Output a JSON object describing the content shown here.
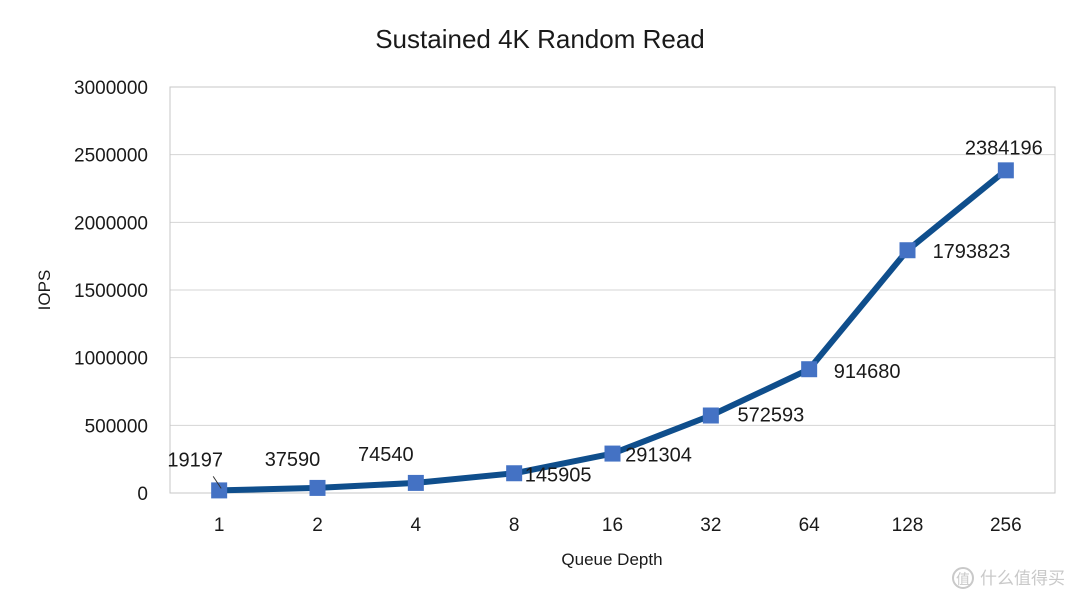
{
  "chart_data": {
    "type": "line",
    "title": "Sustained 4K Random Read",
    "xlabel": "Queue Depth",
    "ylabel": "IOPS",
    "categories": [
      "1",
      "2",
      "4",
      "8",
      "16",
      "32",
      "64",
      "128",
      "256"
    ],
    "series": [
      {
        "values": [
          19197,
          37590,
          74540,
          145905,
          291304,
          572593,
          914680,
          1793823,
          2384196
        ]
      }
    ],
    "data_labels": [
      "19197",
      "37590",
      "74540",
      "145905",
      "291304",
      "572593",
      "914680",
      "1793823",
      "2384196"
    ],
    "ylim": [
      0,
      3000000
    ],
    "y_ticks": [
      0,
      500000,
      1000000,
      1500000,
      2000000,
      2500000,
      3000000
    ],
    "y_tick_labels": [
      "0",
      "500000",
      "1000000",
      "1500000",
      "2000000",
      "2500000",
      "3000000"
    ],
    "grid": true,
    "legend": "none",
    "colors": {
      "line": "#0f4e8c",
      "marker": "#4472c4"
    }
  },
  "watermark": {
    "icon": "value-icon",
    "text": "什么值得买"
  }
}
